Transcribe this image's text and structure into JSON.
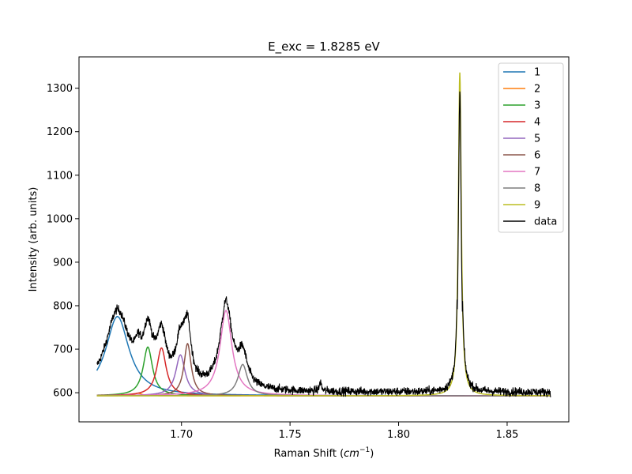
{
  "chart_data": {
    "type": "line",
    "title": "E_exc = 1.8285 eV",
    "xlabel_prefix": "Raman Shift (",
    "xlabel_math": "cm",
    "xlabel_sup": "−1",
    "xlabel_suffix": ")",
    "ylabel": "Intensity (arb. units)",
    "xlim": [
      1.6528,
      1.8784
    ],
    "ylim": [
      533,
      1372
    ],
    "xticks": [
      1.7,
      1.75,
      1.8,
      1.85
    ],
    "xtick_labels": [
      "1.70",
      "1.75",
      "1.80",
      "1.85"
    ],
    "yticks": [
      600,
      700,
      800,
      900,
      1000,
      1100,
      1200,
      1300
    ],
    "ytick_labels": [
      "600",
      "700",
      "800",
      "900",
      "1000",
      "1100",
      "1200",
      "1300"
    ],
    "legend_position": "top-right",
    "baseline": 593,
    "x_range": [
      1.661,
      1.87
    ],
    "series": [
      {
        "name": "1",
        "color": "#1f77b4",
        "center": 1.6705,
        "amplitude": 182,
        "width": 0.0065
      },
      {
        "name": "2",
        "color": "#ff7f0e",
        "center": 1.68,
        "amplitude": 6,
        "width": 0.002
      },
      {
        "name": "3",
        "color": "#2ca02c",
        "center": 1.6845,
        "amplitude": 112,
        "width": 0.0026
      },
      {
        "name": "4",
        "color": "#d62728",
        "center": 1.6908,
        "amplitude": 110,
        "width": 0.0026
      },
      {
        "name": "5",
        "color": "#9467bd",
        "center": 1.6995,
        "amplitude": 94,
        "width": 0.0026
      },
      {
        "name": "6",
        "color": "#8c564b",
        "center": 1.7028,
        "amplitude": 120,
        "width": 0.002
      },
      {
        "name": "7",
        "color": "#e377c2",
        "center": 1.7205,
        "amplitude": 196,
        "width": 0.0033
      },
      {
        "name": "8",
        "color": "#7f7f7f",
        "center": 1.7282,
        "amplitude": 72,
        "width": 0.0026
      },
      {
        "name": "9",
        "color": "#bcbd22",
        "center": 1.8282,
        "amplitude": 743,
        "width": 0.0008
      }
    ],
    "data_series": {
      "name": "data",
      "color": "#000000"
    },
    "extra_features": [
      {
        "center": 1.68,
        "amplitude": 36,
        "width": 0.0015
      },
      {
        "center": 1.764,
        "amplitude": 22,
        "width": 0.0005
      }
    ]
  }
}
